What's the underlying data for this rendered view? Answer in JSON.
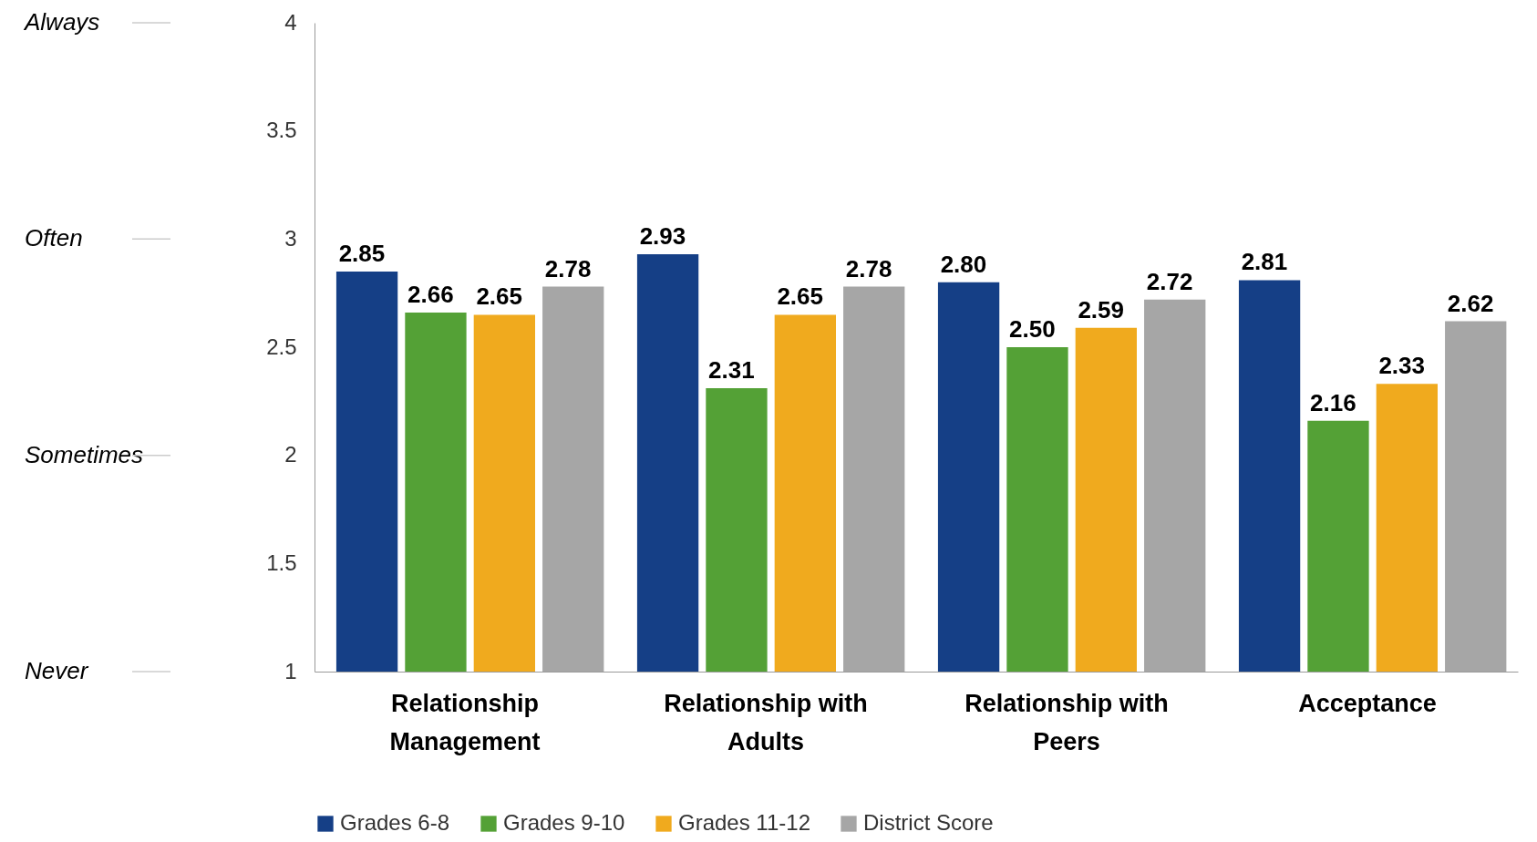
{
  "chart_data": {
    "type": "bar",
    "categories": [
      "Relationship Management",
      "Relationship with Adults",
      "Relationship with Peers",
      "Acceptance"
    ],
    "series": [
      {
        "name": "Grades 6-8",
        "color": "#153f86",
        "values": [
          2.85,
          2.93,
          2.8,
          2.81
        ],
        "value_labels": [
          "2.85",
          "2.93",
          "2.80",
          "2.81"
        ]
      },
      {
        "name": "Grades 9-10",
        "color": "#54a136",
        "values": [
          2.66,
          2.31,
          2.5,
          2.16
        ],
        "value_labels": [
          "2.66",
          "2.31",
          "2.50",
          "2.16"
        ]
      },
      {
        "name": "Grades 11-12",
        "color": "#f0aa1e",
        "values": [
          2.65,
          2.65,
          2.59,
          2.33
        ],
        "value_labels": [
          "2.65",
          "2.65",
          "2.59",
          "2.33"
        ]
      },
      {
        "name": "District Score",
        "color": "#a6a6a6",
        "values": [
          2.78,
          2.78,
          2.72,
          2.62
        ],
        "value_labels": [
          "2.78",
          "2.78",
          "2.72",
          "2.62"
        ]
      }
    ],
    "ylim": [
      1,
      4
    ],
    "yticks": [
      1,
      1.5,
      2,
      2.5,
      3,
      3.5,
      4
    ],
    "annotations": [
      "Always",
      "Often",
      "Sometimes",
      "Never"
    ],
    "grid": false,
    "legend": "bottom"
  }
}
